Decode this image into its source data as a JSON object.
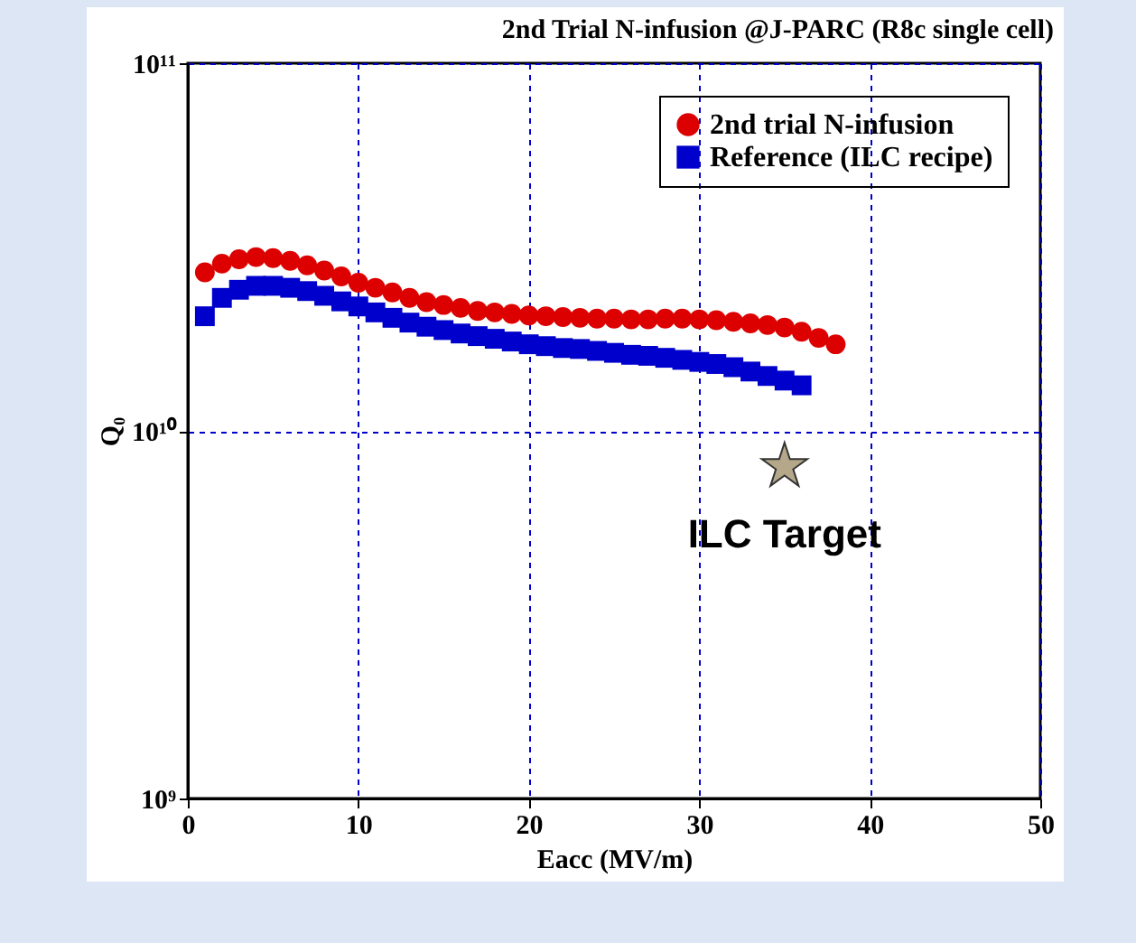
{
  "chart_data": {
    "type": "scatter",
    "title": "2nd Trial N-infusion @J-PARC (R8c single cell)",
    "xlabel": "Eacc (MV/m)",
    "ylabel": "Q₀",
    "log": "y",
    "grid": true,
    "legend": "top right",
    "xlim": [
      0,
      50
    ],
    "xticks": [
      0,
      10,
      20,
      30,
      40,
      50
    ],
    "ylim": [
      1000000000.0,
      100000000000.0
    ],
    "yticks": [
      {
        "value": 1000000000.0,
        "label": "10⁹"
      },
      {
        "value": 10000000000.0,
        "label": "10¹⁰"
      },
      {
        "value": 100000000000.0,
        "label": "10¹¹"
      }
    ],
    "annotations": [
      {
        "text": "ILC Target",
        "x": 35,
        "y": 8000000000.0
      }
    ],
    "series": [
      {
        "name": "2nd trial N-infusion",
        "color": "#dd0000",
        "marker": "circle",
        "x": [
          1,
          2,
          3,
          4,
          5,
          6,
          7,
          8,
          9,
          10,
          11,
          12,
          13,
          14,
          15,
          16,
          17,
          18,
          19,
          20,
          21,
          22,
          23,
          24,
          25,
          26,
          27,
          28,
          29,
          30,
          31,
          32,
          33,
          34,
          35,
          36,
          37,
          38
        ],
        "values": [
          27000000000.0,
          28500000000.0,
          29300000000.0,
          29700000000.0,
          29500000000.0,
          29000000000.0,
          28200000000.0,
          27300000000.0,
          26300000000.0,
          25300000000.0,
          24500000000.0,
          23800000000.0,
          23000000000.0,
          22400000000.0,
          22000000000.0,
          21600000000.0,
          21200000000.0,
          21000000000.0,
          20800000000.0,
          20600000000.0,
          20500000000.0,
          20400000000.0,
          20300000000.0,
          20200000000.0,
          20200000000.0,
          20100000000.0,
          20100000000.0,
          20200000000.0,
          20200000000.0,
          20100000000.0,
          20000000000.0,
          19800000000.0,
          19600000000.0,
          19400000000.0,
          19100000000.0,
          18600000000.0,
          17900000000.0,
          17200000000.0
        ]
      },
      {
        "name": "Reference (ILC recipe)",
        "color": "#0000cc",
        "marker": "square",
        "x": [
          1,
          2,
          3,
          4,
          5,
          6,
          7,
          8,
          9,
          10,
          11,
          12,
          13,
          14,
          15,
          16,
          17,
          18,
          19,
          20,
          21,
          22,
          23,
          24,
          25,
          26,
          27,
          28,
          29,
          30,
          31,
          32,
          33,
          34,
          35,
          36
        ],
        "values": [
          20500000000.0,
          23000000000.0,
          24200000000.0,
          24800000000.0,
          24800000000.0,
          24500000000.0,
          24000000000.0,
          23300000000.0,
          22500000000.0,
          21800000000.0,
          21000000000.0,
          20300000000.0,
          19700000000.0,
          19200000000.0,
          18800000000.0,
          18400000000.0,
          18100000000.0,
          17800000000.0,
          17500000000.0,
          17200000000.0,
          17000000000.0,
          16800000000.0,
          16700000000.0,
          16500000000.0,
          16300000000.0,
          16100000000.0,
          16000000000.0,
          15800000000.0,
          15600000000.0,
          15400000000.0,
          15200000000.0,
          14900000000.0,
          14500000000.0,
          14100000000.0,
          13700000000.0,
          13300000000.0
        ]
      },
      {
        "color": "#b5a88a",
        "marker": "star",
        "x": [
          35
        ],
        "values": [
          8000000000.0
        ]
      }
    ]
  }
}
